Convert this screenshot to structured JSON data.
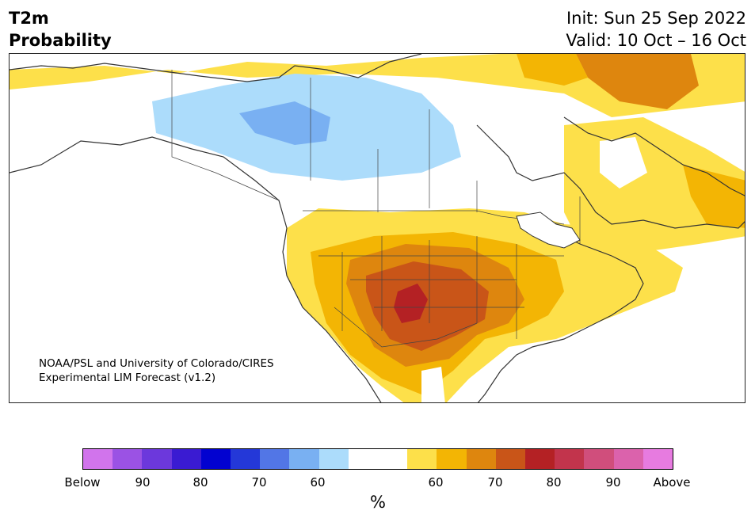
{
  "header": {
    "title_line1": "T2m",
    "title_line2": "Probability",
    "init": "Init: Sun 25 Sep 2022",
    "valid": "Valid: 10 Oct – 16 Oct"
  },
  "map": {
    "credit_line1": "NOAA/PSL and University of Colorado/CIRES",
    "credit_line2": "Experimental LIM Forecast (v1.2)"
  },
  "colorbar": {
    "colors": [
      "#d174ec",
      "#9b52e4",
      "#6c38dc",
      "#3a1bd2",
      "#0202d0",
      "#2438d8",
      "#5276e6",
      "#79b0f2",
      "#acdcfb",
      "#ffffff",
      "#ffffff",
      "#fde04a",
      "#f3b504",
      "#de860e",
      "#c95518",
      "#b42124",
      "#c2344c",
      "#d04e7c",
      "#db62ac",
      "#e77be0"
    ],
    "tick_labels": [
      "Below",
      "90",
      "80",
      "70",
      "60",
      "60",
      "70",
      "80",
      "90",
      "Above"
    ],
    "unit": "%"
  }
}
